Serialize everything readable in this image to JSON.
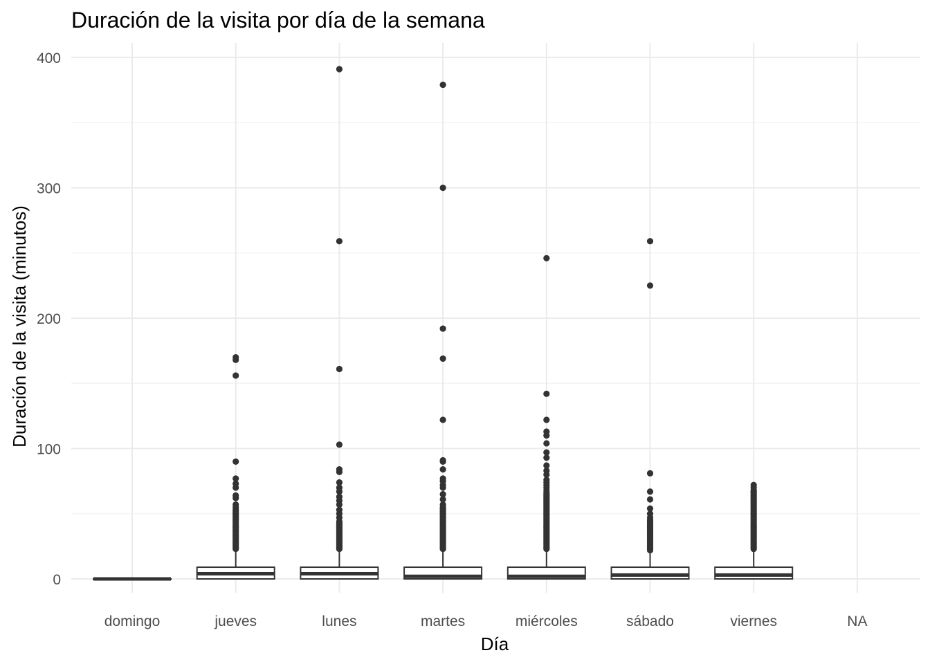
{
  "chart_data": {
    "type": "boxplot",
    "title": "Duración de la visita por día de la semana",
    "xlabel": "Día",
    "ylabel": "Duración de la visita (minutos)",
    "ylim": [
      -17,
      412
    ],
    "yticks": [
      0,
      100,
      200,
      300,
      400
    ],
    "yminor": [
      50,
      150,
      250,
      350
    ],
    "grid": true,
    "legend": "none",
    "categories": [
      "domingo",
      "jueves",
      "lunes",
      "martes",
      "miércoles",
      "sábado",
      "viernes",
      "NA"
    ],
    "boxes": [
      {
        "category": "domingo",
        "q1": 0,
        "median": 0,
        "q3": 0,
        "whisker_low": 0,
        "whisker_high": 0,
        "outliers": []
      },
      {
        "category": "jueves",
        "q1": 0,
        "median": 4,
        "q3": 9,
        "whisker_low": 0,
        "whisker_high": 22,
        "outliers": [
          23,
          24,
          25,
          26,
          27,
          28,
          29,
          30,
          31,
          32,
          33,
          34,
          35,
          36,
          37,
          38,
          39,
          40,
          41,
          42,
          43,
          44,
          45,
          46,
          47,
          48,
          49,
          50,
          51,
          52,
          53,
          55,
          57,
          62,
          64,
          70,
          73,
          77,
          90,
          156,
          168,
          170
        ]
      },
      {
        "category": "lunes",
        "q1": 0,
        "median": 4,
        "q3": 9,
        "whisker_low": 0,
        "whisker_high": 22,
        "outliers": [
          23,
          24,
          25,
          26,
          27,
          28,
          29,
          30,
          31,
          32,
          33,
          34,
          35,
          36,
          37,
          38,
          39,
          40,
          41,
          42,
          43,
          44,
          47,
          50,
          53,
          57,
          60,
          63,
          67,
          70,
          74,
          82,
          84,
          103,
          161,
          259,
          391
        ]
      },
      {
        "category": "martes",
        "q1": 0,
        "median": 2,
        "q3": 9,
        "whisker_low": 0,
        "whisker_high": 22,
        "outliers": [
          23,
          24,
          25,
          26,
          27,
          28,
          29,
          30,
          31,
          32,
          33,
          34,
          35,
          36,
          37,
          38,
          39,
          40,
          41,
          42,
          43,
          44,
          45,
          46,
          47,
          48,
          49,
          50,
          51,
          52,
          53,
          54,
          55,
          57,
          61,
          65,
          70,
          72,
          75,
          77,
          84,
          90,
          91,
          122,
          169,
          192,
          300,
          379
        ]
      },
      {
        "category": "miércoles",
        "q1": 0,
        "median": 2,
        "q3": 9,
        "whisker_low": 0,
        "whisker_high": 22,
        "outliers": [
          23,
          24,
          25,
          26,
          27,
          28,
          29,
          30,
          31,
          32,
          33,
          34,
          35,
          36,
          37,
          38,
          39,
          40,
          41,
          42,
          43,
          44,
          45,
          46,
          47,
          48,
          49,
          50,
          51,
          52,
          53,
          54,
          55,
          56,
          57,
          58,
          59,
          60,
          61,
          62,
          63,
          64,
          65,
          66,
          68,
          70,
          72,
          74,
          76,
          80,
          83,
          87,
          93,
          97,
          104,
          110,
          113,
          122,
          142,
          246
        ]
      },
      {
        "category": "sábado",
        "q1": 0,
        "median": 3,
        "q3": 9,
        "whisker_low": 0,
        "whisker_high": 21,
        "outliers": [
          22,
          23,
          24,
          25,
          26,
          27,
          28,
          29,
          30,
          31,
          32,
          33,
          34,
          35,
          36,
          37,
          38,
          39,
          40,
          41,
          42,
          43,
          44,
          45,
          47,
          50,
          54,
          61,
          67,
          81,
          225,
          259
        ]
      },
      {
        "category": "viernes",
        "q1": 0,
        "median": 3,
        "q3": 9,
        "whisker_low": 0,
        "whisker_high": 22,
        "outliers": [
          23,
          24,
          25,
          26,
          27,
          28,
          29,
          30,
          31,
          32,
          33,
          34,
          35,
          36,
          37,
          38,
          39,
          40,
          41,
          42,
          43,
          44,
          45,
          46,
          47,
          48,
          49,
          50,
          51,
          52,
          53,
          54,
          55,
          56,
          57,
          58,
          59,
          60,
          61,
          62,
          63,
          64,
          65,
          66,
          67,
          68,
          70,
          72
        ]
      },
      {
        "category": "NA",
        "q1": null,
        "median": null,
        "q3": null,
        "whisker_low": null,
        "whisker_high": null,
        "outliers": []
      }
    ]
  }
}
